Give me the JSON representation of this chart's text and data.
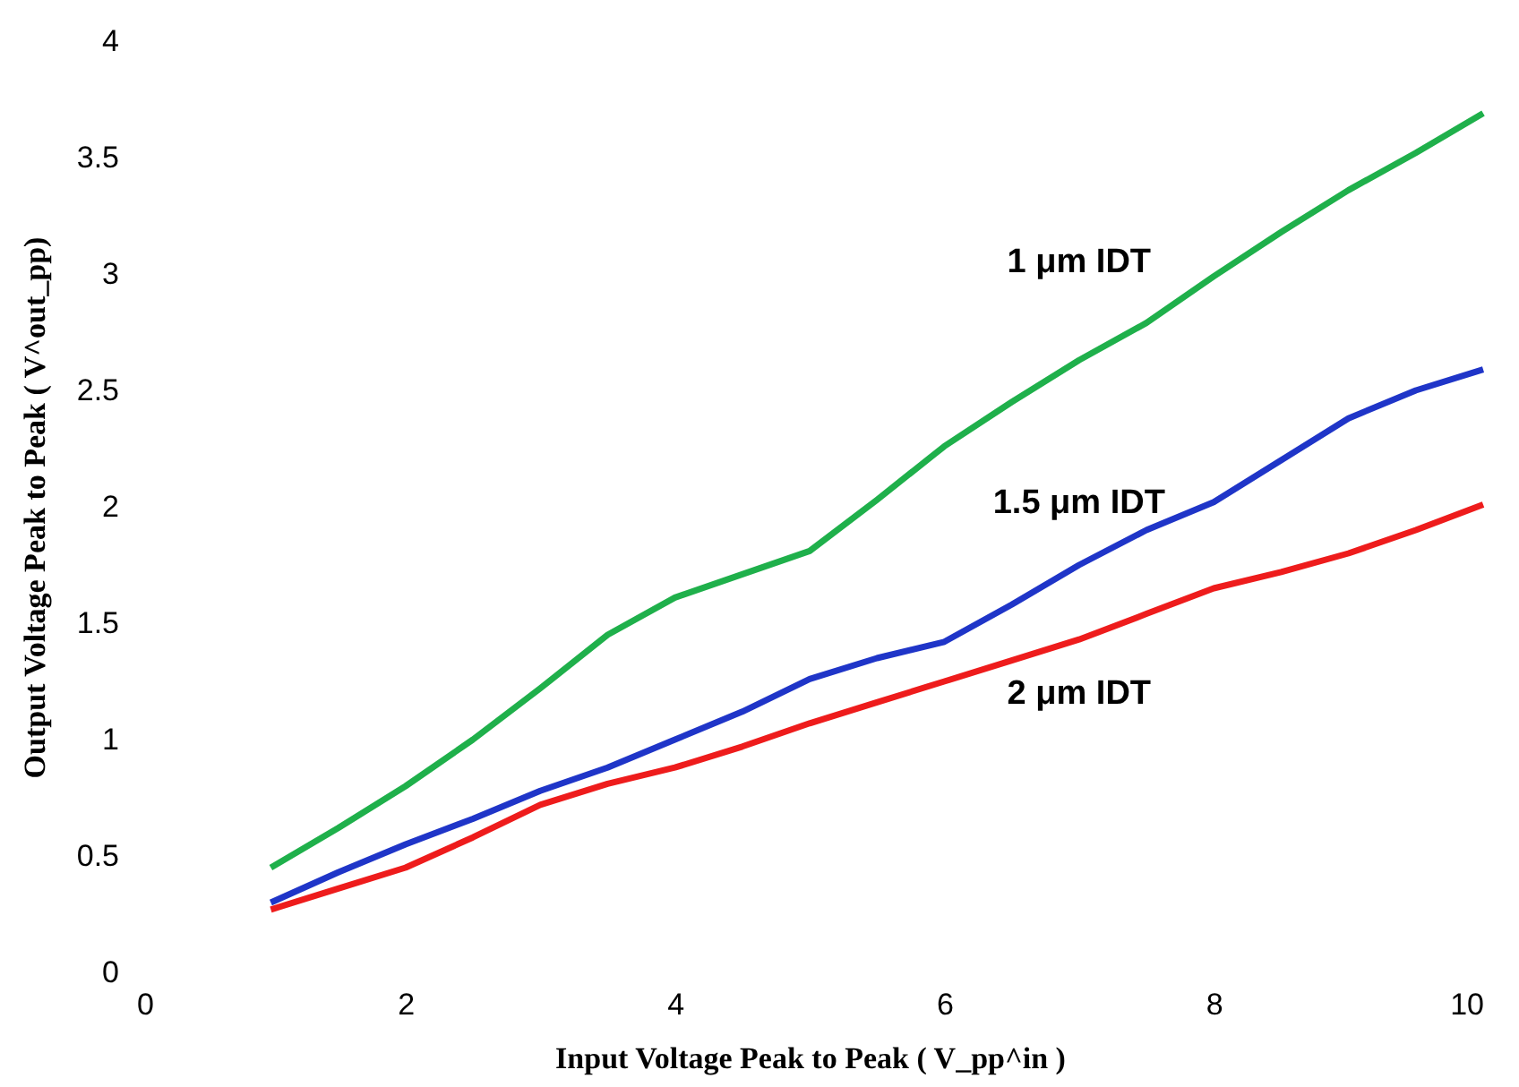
{
  "chart_data": {
    "type": "line",
    "xlabel": "Input Voltage Peak to Peak ( V_pp^in )",
    "ylabel": "Output Voltage Peak to Peak ( V^out_pp)",
    "x": [
      1,
      1.5,
      2,
      2.5,
      3,
      3.5,
      4,
      4.5,
      5,
      5.5,
      6,
      6.5,
      7,
      7.5,
      8,
      8.5,
      9,
      9.5,
      10
    ],
    "series": [
      {
        "color": "#1fb04b",
        "values": [
          0.45,
          0.62,
          0.8,
          1.0,
          1.22,
          1.45,
          1.61,
          1.71,
          1.81,
          2.03,
          2.26,
          2.45,
          2.63,
          2.79,
          2.99,
          3.18,
          3.36,
          3.52,
          3.69
        ]
      },
      {
        "color": "#1f35c8",
        "values": [
          0.3,
          0.43,
          0.55,
          0.66,
          0.78,
          0.88,
          1.0,
          1.12,
          1.26,
          1.35,
          1.42,
          1.58,
          1.75,
          1.9,
          2.02,
          2.2,
          2.38,
          2.5,
          2.59
        ]
      },
      {
        "color": "#ee1c1c",
        "values": [
          0.27,
          0.36,
          0.45,
          0.58,
          0.72,
          0.81,
          0.88,
          0.97,
          1.07,
          1.16,
          1.25,
          1.34,
          1.43,
          1.54,
          1.65,
          1.72,
          1.8,
          1.9,
          2.01
        ]
      }
    ],
    "annotations": [
      "1 μm IDT",
      "1.5 μm IDT",
      "2 μm IDT"
    ],
    "xlim": [
      0,
      10
    ],
    "xticks": [
      0,
      2,
      4,
      6,
      8,
      10
    ],
    "ylim": [
      0,
      4
    ],
    "yticks": [
      0,
      0.5,
      1,
      1.5,
      2,
      2.5,
      3,
      3.5,
      4
    ],
    "grid": false,
    "marker": "none",
    "line_style": "solid"
  }
}
